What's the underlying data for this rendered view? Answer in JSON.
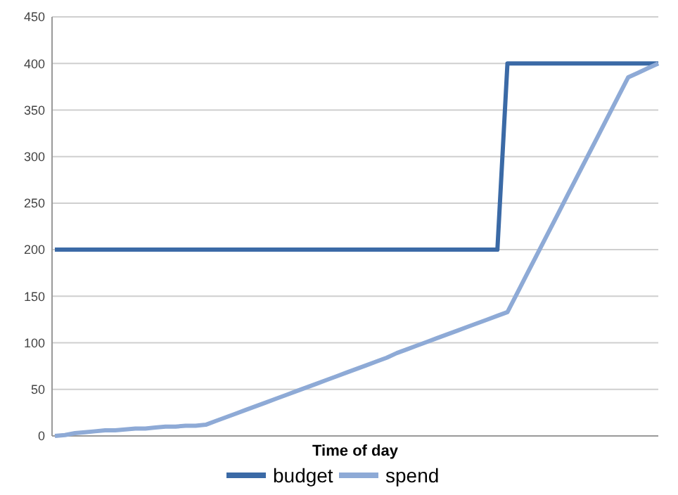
{
  "chart_data": {
    "type": "line",
    "xlabel": "Time of day",
    "categories": [
      null,
      null,
      null,
      null,
      null,
      null,
      null,
      null,
      null,
      null,
      null,
      null,
      null,
      null,
      null,
      null,
      null,
      null,
      null,
      null,
      null,
      null,
      null,
      null,
      null,
      null,
      null,
      null,
      null,
      null,
      null,
      null,
      null,
      null,
      null,
      null,
      null,
      null,
      null,
      null,
      null,
      null,
      null,
      null,
      null,
      null,
      null,
      null,
      null,
      null,
      null,
      null,
      null,
      null,
      null,
      null,
      null,
      null,
      null,
      null,
      null
    ],
    "series": [
      {
        "name": "budget",
        "color": "#3b6aa6",
        "values": [
          200,
          200,
          200,
          200,
          200,
          200,
          200,
          200,
          200,
          200,
          200,
          200,
          200,
          200,
          200,
          200,
          200,
          200,
          200,
          200,
          200,
          200,
          200,
          200,
          200,
          200,
          200,
          200,
          200,
          200,
          200,
          200,
          200,
          200,
          200,
          200,
          200,
          200,
          200,
          200,
          200,
          200,
          200,
          200,
          200,
          400,
          400,
          400,
          400,
          400,
          400,
          400,
          400,
          400,
          400,
          400,
          400,
          400,
          400,
          400,
          400
        ]
      },
      {
        "name": "spend",
        "color": "#8eaad6",
        "values": [
          0,
          1,
          3,
          4,
          5,
          6,
          6,
          7,
          8,
          8,
          9,
          10,
          10,
          11,
          11,
          12,
          16,
          20,
          24,
          28,
          32,
          36,
          40,
          44,
          48,
          52,
          56,
          60,
          64,
          68,
          72,
          76,
          80,
          84,
          89,
          93,
          97,
          101,
          105,
          109,
          113,
          117,
          121,
          125,
          129,
          133,
          154,
          175,
          196,
          217,
          238,
          259,
          280,
          301,
          322,
          343,
          364,
          385,
          390,
          395,
          400
        ]
      }
    ],
    "ylim": [
      0,
      450
    ],
    "yticks": [
      0,
      50,
      100,
      150,
      200,
      250,
      300,
      350,
      400,
      450
    ],
    "grid": "y",
    "legend": "bottom"
  }
}
